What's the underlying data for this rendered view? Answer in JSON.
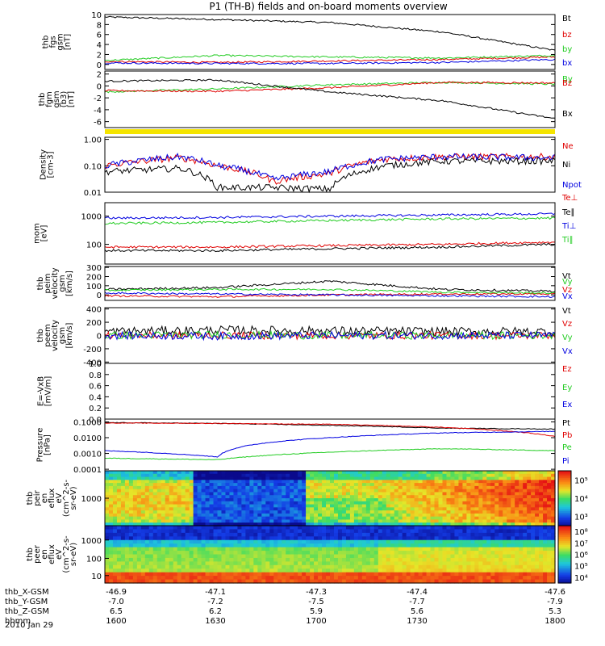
{
  "title": "P1 (TH-B) fields and on-board moments overview",
  "date_label": "2010 Jan 29",
  "colors": {
    "black": "#000000",
    "red": "#e00000",
    "green": "#22cc22",
    "blue": "#0000e0",
    "yellow": "#f5e500"
  },
  "footer": {
    "row_labels": [
      "thb_X-GSM",
      "thb_Y-GSM",
      "thb_Z-GSM",
      "hhmm"
    ],
    "columns": [
      {
        "values": [
          "-46.9",
          "-7.0",
          "6.5",
          "1600"
        ]
      },
      {
        "values": [
          "-47.1",
          "-7.2",
          "6.2",
          "1630"
        ]
      },
      {
        "values": [
          "-47.3",
          "-7.5",
          "5.9",
          "1700"
        ]
      },
      {
        "values": [
          "-47.4",
          "-7.7",
          "5.6",
          "1730"
        ]
      },
      {
        "values": [
          "-47.6",
          "-7.9",
          "5.3",
          "1800"
        ]
      }
    ]
  },
  "chart_data": [
    {
      "type": "line",
      "ylabel_lines": [
        "thb",
        "fgs",
        "gsm",
        "[nT]"
      ],
      "ylim": [
        -1,
        10
      ],
      "ticks": [
        "10",
        "8",
        "6",
        "4",
        "2",
        "0"
      ],
      "x": [
        1600,
        1630,
        1700,
        1730,
        1800
      ],
      "series": [
        {
          "name": "Bt",
          "color": "black",
          "values": [
            9.5,
            9.0,
            8.4,
            6.5,
            2.8
          ]
        },
        {
          "name": "bz",
          "color": "red",
          "values": [
            0.6,
            0.4,
            0.7,
            1.0,
            1.5
          ]
        },
        {
          "name": "by",
          "color": "green",
          "values": [
            0.8,
            1.8,
            1.5,
            1.3,
            1.8
          ]
        },
        {
          "name": "bx",
          "color": "blue",
          "values": [
            0.3,
            0.2,
            0.2,
            0.4,
            1.0
          ]
        }
      ]
    },
    {
      "type": "line",
      "ylabel_lines": [
        "thb",
        "fgm",
        "gsm",
        "(b3)",
        "[nT]"
      ],
      "ylim": [
        -7,
        2.5
      ],
      "ticks": [
        "2",
        "0",
        "-2",
        "-4",
        "-6"
      ],
      "x": [
        1600,
        1630,
        1700,
        1730,
        1800
      ],
      "series": [
        {
          "name": "By",
          "color": "green",
          "values": [
            -1.0,
            -0.5,
            0.2,
            0.6,
            0.3
          ]
        },
        {
          "name": "Bz",
          "color": "red",
          "values": [
            -0.8,
            -0.9,
            -0.3,
            0.6,
            0.5
          ]
        },
        {
          "name": "Bx",
          "color": "black",
          "values": [
            0.8,
            1.0,
            -1.0,
            -2.5,
            -5.5
          ]
        }
      ]
    },
    {
      "type": "line",
      "ylabel_lines": [
        "Density",
        "[cm-3]"
      ],
      "yscale": "log",
      "ylim": [
        0.01,
        1.2
      ],
      "ticks": [
        "1.00",
        "0.10",
        "0.01"
      ],
      "x": [
        1600,
        1620,
        1630,
        1645,
        1700,
        1715,
        1730,
        1800
      ],
      "series": [
        {
          "name": "Ne",
          "color": "red",
          "values": [
            0.1,
            0.2,
            0.1,
            0.025,
            0.05,
            0.18,
            0.22,
            0.22
          ]
        },
        {
          "name": "Ni",
          "color": "black",
          "values": [
            0.06,
            0.08,
            0.015,
            0.015,
            0.013,
            0.1,
            0.15,
            0.15
          ]
        },
        {
          "name": "Npot",
          "color": "blue",
          "values": [
            0.1,
            0.22,
            0.1,
            0.03,
            0.06,
            0.18,
            0.22,
            0.2
          ]
        }
      ]
    },
    {
      "type": "line",
      "ylabel_lines": [
        "mom",
        "[eV]"
      ],
      "yscale": "log",
      "ylim": [
        20,
        3000
      ],
      "ticks": [
        "1000",
        "100"
      ],
      "x": [
        1600,
        1630,
        1700,
        1730,
        1800
      ],
      "series": [
        {
          "name": "Te⊥",
          "color": "red",
          "values": [
            80,
            80,
            90,
            100,
            120
          ]
        },
        {
          "name": "Te∥",
          "color": "black",
          "values": [
            60,
            60,
            70,
            80,
            100
          ]
        },
        {
          "name": "Ti⊥",
          "color": "blue",
          "values": [
            850,
            900,
            1000,
            1100,
            1200
          ]
        },
        {
          "name": "Ti∥",
          "color": "green",
          "values": [
            550,
            600,
            700,
            800,
            850
          ]
        }
      ]
    },
    {
      "type": "line",
      "ylabel_lines": [
        "thb",
        "peim",
        "velocity",
        "gsm",
        "[km/s]"
      ],
      "ylim": [
        -60,
        310
      ],
      "ticks": [
        "300",
        "200",
        "100",
        "0"
      ],
      "x": [
        1600,
        1630,
        1700,
        1730,
        1800
      ],
      "series": [
        {
          "name": "Vt",
          "color": "black",
          "values": [
            60,
            80,
            150,
            60,
            40
          ]
        },
        {
          "name": "Vz",
          "color": "red",
          "values": [
            -10,
            -20,
            0,
            10,
            10
          ]
        },
        {
          "name": "Vy",
          "color": "green",
          "values": [
            50,
            60,
            60,
            30,
            20
          ]
        },
        {
          "name": "Vx",
          "color": "blue",
          "values": [
            20,
            10,
            0,
            -10,
            -20
          ]
        }
      ]
    },
    {
      "type": "line",
      "ylabel_lines": [
        "thb",
        "peem",
        "velocity",
        "gsm",
        "[km/s]"
      ],
      "ylim": [
        -420,
        420
      ],
      "ticks": [
        "400",
        "200",
        "0",
        "-200",
        "-400"
      ],
      "x": [
        1600,
        1630,
        1700,
        1730,
        1800
      ],
      "series": [
        {
          "name": "Vt",
          "color": "black",
          "values": [
            60,
            80,
            70,
            60,
            60
          ]
        },
        {
          "name": "Vz",
          "color": "red",
          "values": [
            0,
            0,
            0,
            0,
            0
          ]
        },
        {
          "name": "Vy",
          "color": "green",
          "values": [
            0,
            10,
            0,
            0,
            0
          ]
        },
        {
          "name": "Vx",
          "color": "blue",
          "values": [
            0,
            -10,
            0,
            0,
            0
          ]
        }
      ]
    },
    {
      "type": "line",
      "ylabel_lines": [
        "E=-VxB",
        "[mV/m]"
      ],
      "ylim": [
        0,
        1
      ],
      "ticks": [
        "1.0",
        "0.8",
        "0.6",
        "0.4",
        "0.2",
        "0.0"
      ],
      "series": [
        {
          "name": "Ez",
          "color": "red",
          "values": []
        },
        {
          "name": "Ey",
          "color": "green",
          "values": []
        },
        {
          "name": "Ex",
          "color": "blue",
          "values": []
        }
      ]
    },
    {
      "type": "line",
      "ylabel_lines": [
        "Pressure",
        "[nPa]"
      ],
      "yscale": "log",
      "ylim": [
        8e-05,
        0.15
      ],
      "ticks": [
        "0.1000",
        "0.0100",
        "0.0010",
        "0.0001"
      ],
      "x": [
        1600,
        1630,
        1700,
        1730,
        1800
      ],
      "series": [
        {
          "name": "Pt",
          "color": "black",
          "values": [
            0.09,
            0.08,
            0.06,
            0.04,
            0.035
          ]
        },
        {
          "name": "Pb",
          "color": "red",
          "values": [
            0.085,
            0.08,
            0.07,
            0.045,
            0.012
          ]
        },
        {
          "name": "Pe",
          "color": "green",
          "values": [
            0.0005,
            0.0004,
            0.0012,
            0.002,
            0.0015
          ]
        },
        {
          "name": "Pi",
          "color": "blue",
          "values": [
            0.0015,
            0.0006,
            0.01,
            0.02,
            0.025
          ]
        }
      ]
    },
    {
      "type": "heatmap",
      "ylabel_lines": [
        "thb",
        "peir",
        "en",
        "eflux",
        "eV",
        "(cm^2-s-",
        "sr-eV)"
      ],
      "ticks": [
        "1000"
      ],
      "colorbar_ticks": [
        "10⁵",
        "10⁴",
        "10³"
      ],
      "x": [
        1600,
        1630,
        1700,
        1730,
        1800
      ]
    },
    {
      "type": "heatmap",
      "ylabel_lines": [
        "thb",
        "peer",
        "en",
        "eflux",
        "eV",
        "(cm^2-s-",
        "sr-eV)"
      ],
      "ticks": [
        "1000",
        "100",
        "10"
      ],
      "colorbar_ticks": [
        "10⁸",
        "10⁷",
        "10⁶",
        "10⁵",
        "10⁴"
      ],
      "x": [
        1600,
        1630,
        1700,
        1730,
        1800
      ]
    }
  ]
}
